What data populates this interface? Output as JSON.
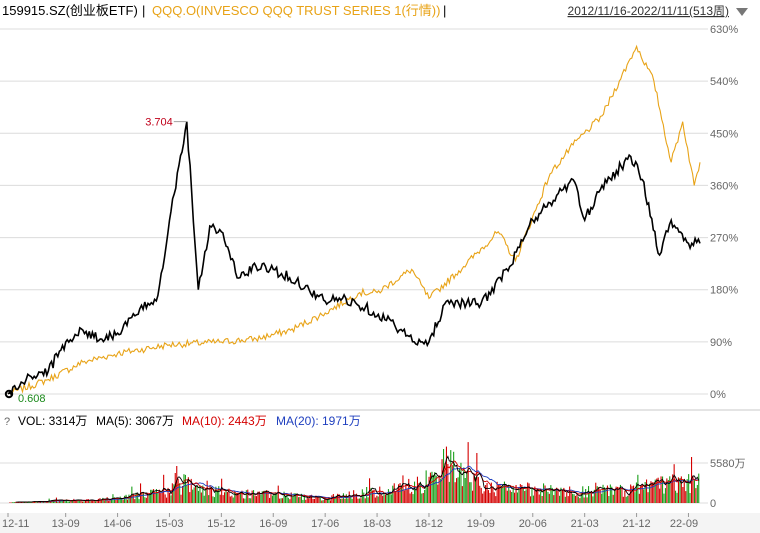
{
  "header": {
    "main_ticker": "159915.SZ(创业板ETF)",
    "separator": "|",
    "compare_ticker": "QQQ.O(INVESCO QQQ TRUST SERIES 1(行情))",
    "separator2": "|",
    "range_label": "2012/11/16-2022/11/11(513周)",
    "dropdown_icon": "triangle-down-icon"
  },
  "colors": {
    "main_line": "#000000",
    "compare_line": "#e8a317",
    "grid": "#dcdcdc",
    "vol_up": "#d40000",
    "vol_down": "#1a9e1a",
    "ma5": "#000000",
    "ma10": "#d40000",
    "ma20": "#1f3fbf",
    "max_label": "#c0001a",
    "min_label": "#1a8a1a"
  },
  "price_panel": {
    "y_ticks": [
      "630%",
      "540%",
      "450%",
      "360%",
      "270%",
      "180%",
      "90%",
      "0%"
    ],
    "max_annotation": "3.704",
    "min_annotation": "0.608"
  },
  "volume_panel": {
    "question_mark": "?",
    "vol_label": "VOL: 3314万",
    "ma5_label": "MA(5): 3067万",
    "ma10_label": "MA(10): 2443万",
    "ma20_label": "MA(20): 1971万",
    "y_ticks": [
      "5580万",
      "0"
    ]
  },
  "x_ticks": [
    "12-11",
    "13-09",
    "14-06",
    "15-03",
    "15-12",
    "16-09",
    "17-06",
    "18-03",
    "18-12",
    "19-09",
    "20-06",
    "21-03",
    "21-12",
    "22-09"
  ],
  "chart_data": {
    "type": "line",
    "x_unit": "week",
    "x_range": [
      "2012-11-16",
      "2022-11-11"
    ],
    "y_unit": "cumulative % change",
    "ylim": [
      0,
      630
    ],
    "series": [
      {
        "name": "159915.SZ(创业板ETF)",
        "points": [
          [
            "12-11",
            0
          ],
          [
            "13-03",
            30
          ],
          [
            "13-06",
            40
          ],
          [
            "13-09",
            90
          ],
          [
            "13-12",
            110
          ],
          [
            "14-03",
            95
          ],
          [
            "14-06",
            105
          ],
          [
            "14-09",
            135
          ],
          [
            "15-01",
            170
          ],
          [
            "15-03",
            300
          ],
          [
            "15-06",
            470
          ],
          [
            "15-08",
            180
          ],
          [
            "15-10",
            290
          ],
          [
            "15-12",
            280
          ],
          [
            "16-03",
            200
          ],
          [
            "16-06",
            220
          ],
          [
            "16-09",
            215
          ],
          [
            "17-01",
            195
          ],
          [
            "17-06",
            160
          ],
          [
            "17-09",
            165
          ],
          [
            "18-01",
            150
          ],
          [
            "18-06",
            120
          ],
          [
            "18-10",
            85
          ],
          [
            "18-12",
            90
          ],
          [
            "19-03",
            160
          ],
          [
            "19-09",
            155
          ],
          [
            "20-02",
            220
          ],
          [
            "20-06",
            300
          ],
          [
            "20-09",
            330
          ],
          [
            "21-01",
            370
          ],
          [
            "21-03",
            300
          ],
          [
            "21-06",
            360
          ],
          [
            "21-11",
            410
          ],
          [
            "22-01",
            370
          ],
          [
            "22-04",
            240
          ],
          [
            "22-06",
            300
          ],
          [
            "22-09",
            260
          ],
          [
            "22-11",
            260
          ]
        ]
      },
      {
        "name": "QQQ.O(INVESCO QQQ TRUST SERIES 1(行情))",
        "points": [
          [
            "12-11",
            0
          ],
          [
            "13-06",
            25
          ],
          [
            "13-12",
            55
          ],
          [
            "14-06",
            70
          ],
          [
            "15-03",
            85
          ],
          [
            "15-12",
            90
          ],
          [
            "16-06",
            95
          ],
          [
            "16-12",
            110
          ],
          [
            "17-06",
            140
          ],
          [
            "17-12",
            175
          ],
          [
            "18-03",
            175
          ],
          [
            "18-09",
            215
          ],
          [
            "18-12",
            165
          ],
          [
            "19-06",
            220
          ],
          [
            "19-12",
            280
          ],
          [
            "20-03",
            230
          ],
          [
            "20-09",
            380
          ],
          [
            "21-01",
            430
          ],
          [
            "21-06",
            480
          ],
          [
            "21-09",
            540
          ],
          [
            "21-12",
            600
          ],
          [
            "22-03",
            540
          ],
          [
            "22-06",
            400
          ],
          [
            "22-08",
            470
          ],
          [
            "22-10",
            360
          ],
          [
            "22-11",
            400
          ]
        ]
      }
    ],
    "annotations": [
      {
        "text": "3.704",
        "kind": "max",
        "x": "15-06"
      },
      {
        "text": "0.608",
        "kind": "min",
        "x": "12-11"
      }
    ],
    "volume": {
      "unit": "万",
      "ylim": [
        0,
        8000
      ],
      "ticks": [
        0,
        5580
      ],
      "latest": 3314,
      "ma5": 3067,
      "ma10": 2443,
      "ma20": 1971
    },
    "grid": true,
    "legend": "top-left"
  }
}
